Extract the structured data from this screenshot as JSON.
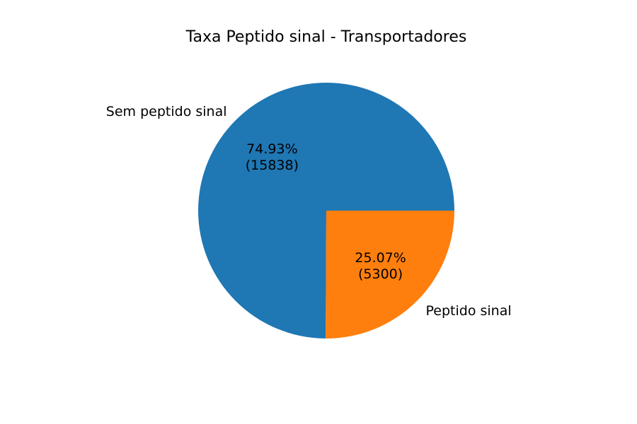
{
  "chart_data": {
    "type": "pie",
    "title": "Taxa Peptido sinal - Transportadores",
    "start_angle_deg": 0,
    "direction": "counterclockwise",
    "slices": [
      {
        "label": "Sem peptido sinal",
        "value": 15838,
        "percent": 74.93,
        "pct_text": "74.93%",
        "count_text": "(15838)",
        "color": "#1f77b4"
      },
      {
        "label": "Peptido sinal",
        "value": 5300,
        "percent": 25.07,
        "pct_text": "25.07%",
        "count_text": "(5300)",
        "color": "#ff7f0e"
      }
    ]
  }
}
